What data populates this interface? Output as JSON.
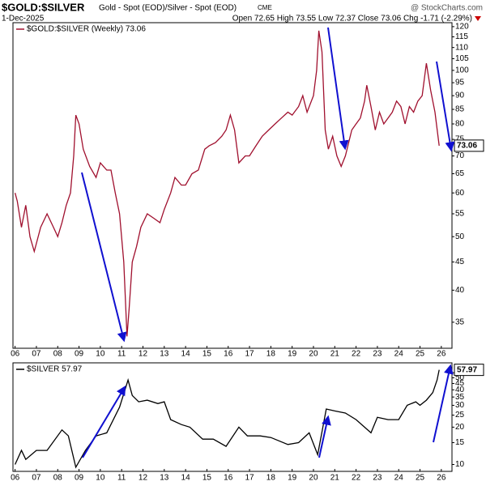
{
  "header": {
    "symbol": "$GOLD:$SILVER",
    "description": "Gold - Spot (EOD)/Silver - Spot (EOD)",
    "exchange": "CME",
    "source": "@ StockCharts.com",
    "date": "1-Dec-2025",
    "quote": "Open 72.65 High 73.55 Low 72.37 Close 73.06 Chg -1.71 (-2.29%)"
  },
  "chart_data": [
    {
      "type": "line",
      "log_scale": true,
      "grid": false,
      "xlim": [
        2005.9,
        2026.5
      ],
      "xticks": [
        {
          "value": 2006,
          "label": "06"
        },
        {
          "value": 2007,
          "label": "07"
        },
        {
          "value": 2008,
          "label": "08"
        },
        {
          "value": 2009,
          "label": "09"
        },
        {
          "value": 2010,
          "label": "10"
        },
        {
          "value": 2011,
          "label": "11"
        },
        {
          "value": 2012,
          "label": "12"
        },
        {
          "value": 2013,
          "label": "13"
        },
        {
          "value": 2014,
          "label": "14"
        },
        {
          "value": 2015,
          "label": "15"
        },
        {
          "value": 2016,
          "label": "16"
        },
        {
          "value": 2017,
          "label": "17"
        },
        {
          "value": 2018,
          "label": "18"
        },
        {
          "value": 2019,
          "label": "19"
        },
        {
          "value": 2020,
          "label": "20"
        },
        {
          "value": 2021,
          "label": "21"
        },
        {
          "value": 2022,
          "label": "22"
        },
        {
          "value": 2023,
          "label": "23"
        },
        {
          "value": 2024,
          "label": "24"
        },
        {
          "value": 2025,
          "label": "25"
        },
        {
          "value": 2026,
          "label": "26"
        }
      ],
      "ylim": [
        31.4,
        122
      ],
      "yticks": [
        35,
        40,
        45,
        50,
        55,
        60,
        65,
        70,
        75,
        80,
        85,
        90,
        95,
        100,
        105,
        110,
        115,
        120
      ],
      "x": [
        2006.0,
        2006.1,
        2006.3,
        2006.5,
        2006.7,
        2006.9,
        2007.2,
        2007.5,
        2007.8,
        2008.0,
        2008.2,
        2008.4,
        2008.6,
        2008.75,
        2008.85,
        2009.0,
        2009.2,
        2009.5,
        2009.8,
        2010.0,
        2010.3,
        2010.5,
        2010.7,
        2010.9,
        2011.1,
        2011.25,
        2011.35,
        2011.5,
        2011.7,
        2011.9,
        2012.2,
        2012.5,
        2012.8,
        2013.0,
        2013.3,
        2013.5,
        2013.8,
        2014.0,
        2014.3,
        2014.6,
        2014.9,
        2015.1,
        2015.4,
        2015.7,
        2015.9,
        2016.1,
        2016.3,
        2016.5,
        2016.8,
        2017.0,
        2017.3,
        2017.6,
        2017.9,
        2018.2,
        2018.5,
        2018.8,
        2019.0,
        2019.3,
        2019.5,
        2019.7,
        2020.0,
        2020.15,
        2020.25,
        2020.4,
        2020.55,
        2020.7,
        2020.9,
        2021.1,
        2021.3,
        2021.5,
        2021.8,
        2022.0,
        2022.2,
        2022.4,
        2022.5,
        2022.7,
        2022.9,
        2023.1,
        2023.3,
        2023.5,
        2023.7,
        2023.9,
        2024.1,
        2024.3,
        2024.5,
        2024.7,
        2024.9,
        2025.1,
        2025.3,
        2025.5,
        2025.7,
        2025.9
      ],
      "series": [
        {
          "name": "$GOLD:$SILVER (Weekly) 73.06",
          "color": "#a0102e",
          "values": [
            60,
            58,
            52,
            57,
            50,
            47,
            52,
            55,
            52,
            50,
            53,
            57,
            60,
            70,
            83,
            80,
            72,
            67,
            64,
            68,
            66,
            66,
            60,
            55,
            45,
            33,
            37,
            45,
            48,
            52,
            55,
            54,
            53,
            56,
            60,
            64,
            62,
            62,
            65,
            66,
            72,
            73,
            74,
            76,
            78,
            83,
            78,
            68,
            70,
            70,
            73,
            76,
            78,
            80,
            82,
            84,
            83,
            86,
            90,
            84,
            90,
            100,
            118,
            108,
            78,
            72,
            76,
            70,
            67,
            70,
            78,
            80,
            82,
            88,
            94,
            86,
            78,
            84,
            80,
            82,
            84,
            88,
            86,
            80,
            86,
            84,
            88,
            90,
            103,
            92,
            84,
            73.06
          ]
        }
      ]
    },
    {
      "type": "line",
      "log_scale": true,
      "grid": false,
      "xlim": [
        2005.9,
        2026.5
      ],
      "xticks": [
        {
          "value": 2006,
          "label": "06"
        },
        {
          "value": 2007,
          "label": "07"
        },
        {
          "value": 2008,
          "label": "08"
        },
        {
          "value": 2009,
          "label": "09"
        },
        {
          "value": 2010,
          "label": "10"
        },
        {
          "value": 2011,
          "label": "11"
        },
        {
          "value": 2012,
          "label": "12"
        },
        {
          "value": 2013,
          "label": "13"
        },
        {
          "value": 2014,
          "label": "14"
        },
        {
          "value": 2015,
          "label": "15"
        },
        {
          "value": 2016,
          "label": "16"
        },
        {
          "value": 2017,
          "label": "17"
        },
        {
          "value": 2018,
          "label": "18"
        },
        {
          "value": 2019,
          "label": "19"
        },
        {
          "value": 2020,
          "label": "20"
        },
        {
          "value": 2021,
          "label": "21"
        },
        {
          "value": 2022,
          "label": "22"
        },
        {
          "value": 2023,
          "label": "23"
        },
        {
          "value": 2024,
          "label": "24"
        },
        {
          "value": 2025,
          "label": "25"
        },
        {
          "value": 2026,
          "label": "26"
        }
      ],
      "ylim": [
        8.8,
        66
      ],
      "yticks": [
        10,
        15,
        20,
        25,
        30,
        35,
        40,
        45,
        50,
        55
      ],
      "x": [
        2006.0,
        2006.3,
        2006.5,
        2007.0,
        2007.5,
        2008.2,
        2008.5,
        2008.85,
        2009.3,
        2009.8,
        2010.3,
        2010.9,
        2011.3,
        2011.5,
        2011.8,
        2012.2,
        2012.7,
        2013.0,
        2013.3,
        2013.8,
        2014.2,
        2014.8,
        2015.3,
        2015.9,
        2016.5,
        2016.9,
        2017.5,
        2018.0,
        2018.8,
        2019.3,
        2019.8,
        2020.2,
        2020.6,
        2021.0,
        2021.5,
        2022.0,
        2022.7,
        2023.0,
        2023.5,
        2024.0,
        2024.4,
        2024.8,
        2025.0,
        2025.3,
        2025.6,
        2025.8,
        2025.9
      ],
      "series": [
        {
          "name": "$SILVER 57.97",
          "color": "#000000",
          "values": [
            10,
            13,
            11,
            13,
            13,
            19,
            17,
            9.5,
            13,
            17,
            18,
            29,
            48,
            36,
            32,
            33,
            31,
            32,
            23,
            21,
            20,
            16,
            16,
            14,
            20,
            17,
            17,
            16.5,
            14.5,
            15,
            18,
            12,
            28,
            27,
            26,
            23,
            18,
            24,
            23,
            23,
            30,
            32,
            30,
            33,
            38,
            48,
            57.97
          ]
        }
      ]
    }
  ]
}
